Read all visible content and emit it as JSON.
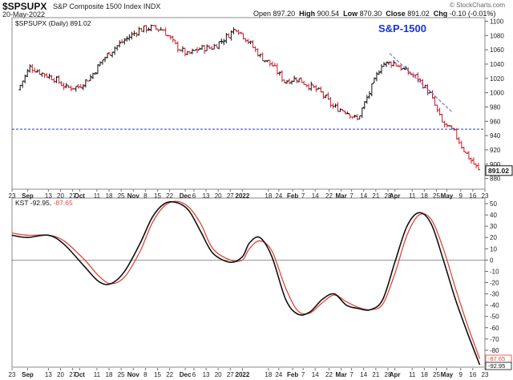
{
  "header": {
    "symbol": "$SPSUPX",
    "name": "S&P Composite 1500 Index INDX",
    "date": "20-May-2022",
    "credit": "© StockCharts.com",
    "open_label": "Open",
    "open": "897.20",
    "high_label": "High",
    "high": "900.54",
    "low_label": "Low",
    "low": "870.30",
    "close_label": "Close",
    "close": "891.02",
    "chg_label": "Chg",
    "chg": "-0.10 (-0.01%)"
  },
  "colors": {
    "up": "#111111",
    "down": "#cc1f2b",
    "signal": "#e0453a",
    "kst": "#111111",
    "reference_line": "#1f3fe0",
    "trendline": "#5a5ae0",
    "annotation": "#1a33d6",
    "last_label_bg": "#ffffff"
  },
  "chart_data": [
    {
      "type": "candlestick",
      "legend": "$SPSUPX (Daily) 891.02",
      "annotation": "S&P-1500",
      "last_value_label": "891.02",
      "y_ticks": [
        "880",
        "900",
        "920",
        "940",
        "960",
        "980",
        "1000",
        "1020",
        "1040",
        "1060",
        "1080",
        "1100"
      ],
      "ylim": [
        865,
        1105
      ],
      "x_ticks": [
        "23",
        "Sep",
        "13",
        "20",
        "27",
        "Oct",
        "11",
        "18",
        "25",
        "Nov",
        "8",
        "15",
        "22",
        "Dec",
        "6",
        "13",
        "20",
        "27",
        "2022",
        "18",
        "24",
        "Feb",
        "7",
        "14",
        "22",
        "Mar",
        "7",
        "14",
        "21",
        "28",
        "Apr",
        "11",
        "18",
        "25",
        "May",
        "9",
        "16",
        "23"
      ],
      "horizontal_line": 949,
      "trendline": [
        {
          "date": "2022-03-29",
          "value": 1055
        },
        {
          "date": "2022-05-04",
          "value": 973
        }
      ],
      "weekly_closes": [
        {
          "date": "2021-08-27",
          "value": 1004
        },
        {
          "date": "2021-09-03",
          "value": 1036
        },
        {
          "date": "2021-09-10",
          "value": 1027
        },
        {
          "date": "2021-09-17",
          "value": 1020
        },
        {
          "date": "2021-09-24",
          "value": 1007
        },
        {
          "date": "2021-10-01",
          "value": 1008
        },
        {
          "date": "2021-10-08",
          "value": 1022
        },
        {
          "date": "2021-10-15",
          "value": 1046
        },
        {
          "date": "2021-10-22",
          "value": 1063
        },
        {
          "date": "2021-10-29",
          "value": 1076
        },
        {
          "date": "2021-11-05",
          "value": 1088
        },
        {
          "date": "2021-11-12",
          "value": 1091
        },
        {
          "date": "2021-11-19",
          "value": 1088
        },
        {
          "date": "2021-11-26",
          "value": 1066
        },
        {
          "date": "2021-12-03",
          "value": 1053
        },
        {
          "date": "2021-12-10",
          "value": 1062
        },
        {
          "date": "2021-12-17",
          "value": 1063
        },
        {
          "date": "2021-12-24",
          "value": 1075
        },
        {
          "date": "2021-12-31",
          "value": 1091
        },
        {
          "date": "2022-01-07",
          "value": 1072
        },
        {
          "date": "2022-01-14",
          "value": 1051
        },
        {
          "date": "2022-01-21",
          "value": 1038
        },
        {
          "date": "2022-01-28",
          "value": 1016
        },
        {
          "date": "2022-02-04",
          "value": 1020
        },
        {
          "date": "2022-02-11",
          "value": 1010
        },
        {
          "date": "2022-02-18",
          "value": 1000
        },
        {
          "date": "2022-02-25",
          "value": 980
        },
        {
          "date": "2022-03-04",
          "value": 975
        },
        {
          "date": "2022-03-11",
          "value": 962
        },
        {
          "date": "2022-03-18",
          "value": 1000
        },
        {
          "date": "2022-03-25",
          "value": 1040
        },
        {
          "date": "2022-04-01",
          "value": 1042
        },
        {
          "date": "2022-04-08",
          "value": 1030
        },
        {
          "date": "2022-04-15",
          "value": 1020
        },
        {
          "date": "2022-04-22",
          "value": 998
        },
        {
          "date": "2022-04-29",
          "value": 958
        },
        {
          "date": "2022-05-06",
          "value": 944
        },
        {
          "date": "2022-05-13",
          "value": 914
        },
        {
          "date": "2022-05-20",
          "value": 891.02
        }
      ]
    },
    {
      "type": "line",
      "legend_name": "KST",
      "legend_value_kst": "-92.95,",
      "legend_value_signal": "-87.65",
      "last_value_labels": [
        "-87.65",
        "-92.95"
      ],
      "y_ticks": [
        "-90",
        "-80",
        "-70",
        "-60",
        "-50",
        "-40",
        "-30",
        "-20",
        "-10",
        "0",
        "10",
        "20",
        "30",
        "40",
        "50"
      ],
      "ylim": [
        -95,
        55
      ],
      "zero_line": 0,
      "series": [
        {
          "name": "KST",
          "values": [
            {
              "date": "2021-08-23",
              "value": 22
            },
            {
              "date": "2021-09-01",
              "value": 20
            },
            {
              "date": "2021-09-13",
              "value": 22
            },
            {
              "date": "2021-09-22",
              "value": 14
            },
            {
              "date": "2021-10-04",
              "value": -6
            },
            {
              "date": "2021-10-12",
              "value": -19
            },
            {
              "date": "2021-10-19",
              "value": -21
            },
            {
              "date": "2021-10-27",
              "value": -10
            },
            {
              "date": "2021-11-05",
              "value": 15
            },
            {
              "date": "2021-11-12",
              "value": 38
            },
            {
              "date": "2021-11-19",
              "value": 50
            },
            {
              "date": "2021-11-26",
              "value": 51
            },
            {
              "date": "2021-12-03",
              "value": 44
            },
            {
              "date": "2021-12-10",
              "value": 25
            },
            {
              "date": "2021-12-17",
              "value": 6
            },
            {
              "date": "2021-12-27",
              "value": -2
            },
            {
              "date": "2022-01-03",
              "value": 3
            },
            {
              "date": "2022-01-07",
              "value": 15
            },
            {
              "date": "2022-01-13",
              "value": 20
            },
            {
              "date": "2022-01-20",
              "value": 3
            },
            {
              "date": "2022-01-28",
              "value": -35
            },
            {
              "date": "2022-02-04",
              "value": -48
            },
            {
              "date": "2022-02-11",
              "value": -46
            },
            {
              "date": "2022-02-18",
              "value": -35
            },
            {
              "date": "2022-02-25",
              "value": -30
            },
            {
              "date": "2022-03-04",
              "value": -40
            },
            {
              "date": "2022-03-11",
              "value": -43
            },
            {
              "date": "2022-03-18",
              "value": -44
            },
            {
              "date": "2022-03-25",
              "value": -35
            },
            {
              "date": "2022-04-01",
              "value": -2
            },
            {
              "date": "2022-04-08",
              "value": 30
            },
            {
              "date": "2022-04-15",
              "value": 42
            },
            {
              "date": "2022-04-22",
              "value": 32
            },
            {
              "date": "2022-04-29",
              "value": 0
            },
            {
              "date": "2022-05-06",
              "value": -35
            },
            {
              "date": "2022-05-13",
              "value": -65
            },
            {
              "date": "2022-05-20",
              "value": -92.95
            }
          ]
        },
        {
          "name": "",
          "values": [
            {
              "date": "2021-08-23",
              "value": 24
            },
            {
              "date": "2021-09-01",
              "value": 22
            },
            {
              "date": "2021-09-13",
              "value": 22
            },
            {
              "date": "2021-09-22",
              "value": 17
            },
            {
              "date": "2021-10-04",
              "value": 0
            },
            {
              "date": "2021-10-12",
              "value": -14
            },
            {
              "date": "2021-10-19",
              "value": -21
            },
            {
              "date": "2021-10-27",
              "value": -15
            },
            {
              "date": "2021-11-05",
              "value": 8
            },
            {
              "date": "2021-11-12",
              "value": 33
            },
            {
              "date": "2021-11-19",
              "value": 48
            },
            {
              "date": "2021-11-26",
              "value": 52
            },
            {
              "date": "2021-12-03",
              "value": 47
            },
            {
              "date": "2021-12-10",
              "value": 32
            },
            {
              "date": "2021-12-17",
              "value": 10
            },
            {
              "date": "2021-12-27",
              "value": 0
            },
            {
              "date": "2022-01-03",
              "value": 0
            },
            {
              "date": "2022-01-07",
              "value": 10
            },
            {
              "date": "2022-01-13",
              "value": 17
            },
            {
              "date": "2022-01-20",
              "value": 8
            },
            {
              "date": "2022-01-28",
              "value": -25
            },
            {
              "date": "2022-02-04",
              "value": -45
            },
            {
              "date": "2022-02-11",
              "value": -47
            },
            {
              "date": "2022-02-18",
              "value": -38
            },
            {
              "date": "2022-02-25",
              "value": -31
            },
            {
              "date": "2022-03-04",
              "value": -37
            },
            {
              "date": "2022-03-11",
              "value": -42
            },
            {
              "date": "2022-03-18",
              "value": -44
            },
            {
              "date": "2022-03-25",
              "value": -39
            },
            {
              "date": "2022-04-01",
              "value": -12
            },
            {
              "date": "2022-04-08",
              "value": 22
            },
            {
              "date": "2022-04-15",
              "value": 40
            },
            {
              "date": "2022-04-22",
              "value": 36
            },
            {
              "date": "2022-04-29",
              "value": 10
            },
            {
              "date": "2022-05-06",
              "value": -25
            },
            {
              "date": "2022-05-13",
              "value": -58
            },
            {
              "date": "2022-05-20",
              "value": -87.65
            }
          ]
        }
      ]
    }
  ]
}
